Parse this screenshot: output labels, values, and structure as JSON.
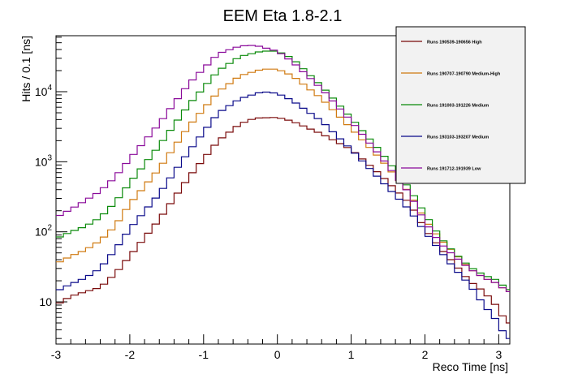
{
  "chart_data": {
    "type": "line",
    "title": "EEM Eta 1.8-2.1",
    "xlabel": "Reco Time [ns]",
    "ylabel": "Hits / 0.1 [ns]",
    "xlim": [
      -3,
      3.15
    ],
    "ylim": [
      2.5,
      63000
    ],
    "yscale": "log",
    "grid": false,
    "legend_position": "top-right",
    "x_ticks": [
      -3,
      -2,
      -1,
      0,
      1,
      2,
      3
    ],
    "x_tick_labels": [
      "-3",
      "-2",
      "-1",
      "0",
      "1",
      "2",
      "3"
    ],
    "y_ticks": [
      10,
      100,
      1000,
      10000
    ],
    "y_tick_labels": [
      "10",
      "10^2",
      "10^3",
      "10^4"
    ],
    "bin_width": 0.1,
    "series": [
      {
        "name": "Runs 190539-190656 High",
        "color": "#7a0a0a",
        "anchors": [
          [
            -3.0,
            9
          ],
          [
            -2.8,
            12
          ],
          [
            -2.6,
            14
          ],
          [
            -2.4,
            16
          ],
          [
            -2.2,
            25
          ],
          [
            -2.0,
            45
          ],
          [
            -1.6,
            150
          ],
          [
            -1.2,
            600
          ],
          [
            -0.8,
            2000
          ],
          [
            -0.5,
            3500
          ],
          [
            -0.3,
            4200
          ],
          [
            0.0,
            4300
          ],
          [
            0.2,
            3800
          ],
          [
            0.6,
            2500
          ],
          [
            1.0,
            1500
          ],
          [
            1.4,
            650
          ],
          [
            1.8,
            250
          ],
          [
            2.0,
            110
          ],
          [
            2.2,
            60
          ],
          [
            2.4,
            35
          ],
          [
            2.6,
            20
          ],
          [
            2.8,
            14
          ],
          [
            3.0,
            8
          ],
          [
            3.1,
            5
          ]
        ]
      },
      {
        "name": "Runs 190707-190790 Medium-High",
        "color": "#d07a10",
        "anchors": [
          [
            -3.0,
            35
          ],
          [
            -2.8,
            45
          ],
          [
            -2.6,
            55
          ],
          [
            -2.4,
            75
          ],
          [
            -2.2,
            120
          ],
          [
            -2.0,
            250
          ],
          [
            -1.6,
            800
          ],
          [
            -1.2,
            3200
          ],
          [
            -0.8,
            10000
          ],
          [
            -0.5,
            17000
          ],
          [
            -0.2,
            21000
          ],
          [
            0.0,
            21000
          ],
          [
            0.2,
            17000
          ],
          [
            0.6,
            8000
          ],
          [
            1.0,
            3000
          ],
          [
            1.4,
            1100
          ],
          [
            1.8,
            350
          ],
          [
            2.0,
            150
          ],
          [
            2.2,
            80
          ],
          [
            2.4,
            50
          ],
          [
            2.6,
            30
          ],
          [
            2.8,
            22
          ],
          [
            3.0,
            18
          ],
          [
            3.1,
            14
          ]
        ]
      },
      {
        "name": "Runs 191003-191226 Medium",
        "color": "#0a8a0a",
        "anchors": [
          [
            -3.0,
            80
          ],
          [
            -2.8,
            100
          ],
          [
            -2.6,
            120
          ],
          [
            -2.4,
            160
          ],
          [
            -2.2,
            260
          ],
          [
            -2.0,
            500
          ],
          [
            -1.6,
            1700
          ],
          [
            -1.2,
            6500
          ],
          [
            -0.8,
            20000
          ],
          [
            -0.5,
            32000
          ],
          [
            -0.2,
            38000
          ],
          [
            0.0,
            38000
          ],
          [
            0.2,
            30000
          ],
          [
            0.6,
            12000
          ],
          [
            1.0,
            4200
          ],
          [
            1.4,
            1400
          ],
          [
            1.8,
            400
          ],
          [
            2.0,
            180
          ],
          [
            2.2,
            85
          ],
          [
            2.4,
            50
          ],
          [
            2.6,
            32
          ],
          [
            2.8,
            24
          ],
          [
            3.0,
            20
          ],
          [
            3.1,
            15
          ]
        ]
      },
      {
        "name": "Runs 193103-193207 Medium",
        "color": "#0a0a8a",
        "anchors": [
          [
            -3.0,
            14
          ],
          [
            -2.8,
            18
          ],
          [
            -2.6,
            22
          ],
          [
            -2.4,
            30
          ],
          [
            -2.2,
            55
          ],
          [
            -2.0,
            110
          ],
          [
            -1.6,
            350
          ],
          [
            -1.2,
            1400
          ],
          [
            -0.8,
            5000
          ],
          [
            -0.5,
            8000
          ],
          [
            -0.2,
            10000
          ],
          [
            0.0,
            9500
          ],
          [
            0.2,
            7500
          ],
          [
            0.6,
            3800
          ],
          [
            1.0,
            1500
          ],
          [
            1.4,
            550
          ],
          [
            1.8,
            200
          ],
          [
            2.0,
            100
          ],
          [
            2.2,
            55
          ],
          [
            2.4,
            30
          ],
          [
            2.6,
            18
          ],
          [
            2.8,
            9
          ],
          [
            3.0,
            5
          ],
          [
            3.1,
            3
          ]
        ]
      },
      {
        "name": "Runs 191712-191939 Low",
        "color": "#8a0a9a",
        "anchors": [
          [
            -3.0,
            160
          ],
          [
            -2.8,
            210
          ],
          [
            -2.6,
            280
          ],
          [
            -2.4,
            380
          ],
          [
            -2.2,
            600
          ],
          [
            -2.0,
            1100
          ],
          [
            -1.6,
            3500
          ],
          [
            -1.2,
            13000
          ],
          [
            -0.8,
            35000
          ],
          [
            -0.5,
            45000
          ],
          [
            -0.3,
            46000
          ],
          [
            0.0,
            38000
          ],
          [
            0.2,
            27000
          ],
          [
            0.6,
            11000
          ],
          [
            1.0,
            3800
          ],
          [
            1.4,
            1200
          ],
          [
            1.8,
            340
          ],
          [
            2.0,
            140
          ],
          [
            2.2,
            70
          ],
          [
            2.4,
            45
          ],
          [
            2.6,
            30
          ],
          [
            2.8,
            22
          ],
          [
            3.0,
            18
          ],
          [
            3.1,
            14
          ]
        ]
      }
    ]
  }
}
